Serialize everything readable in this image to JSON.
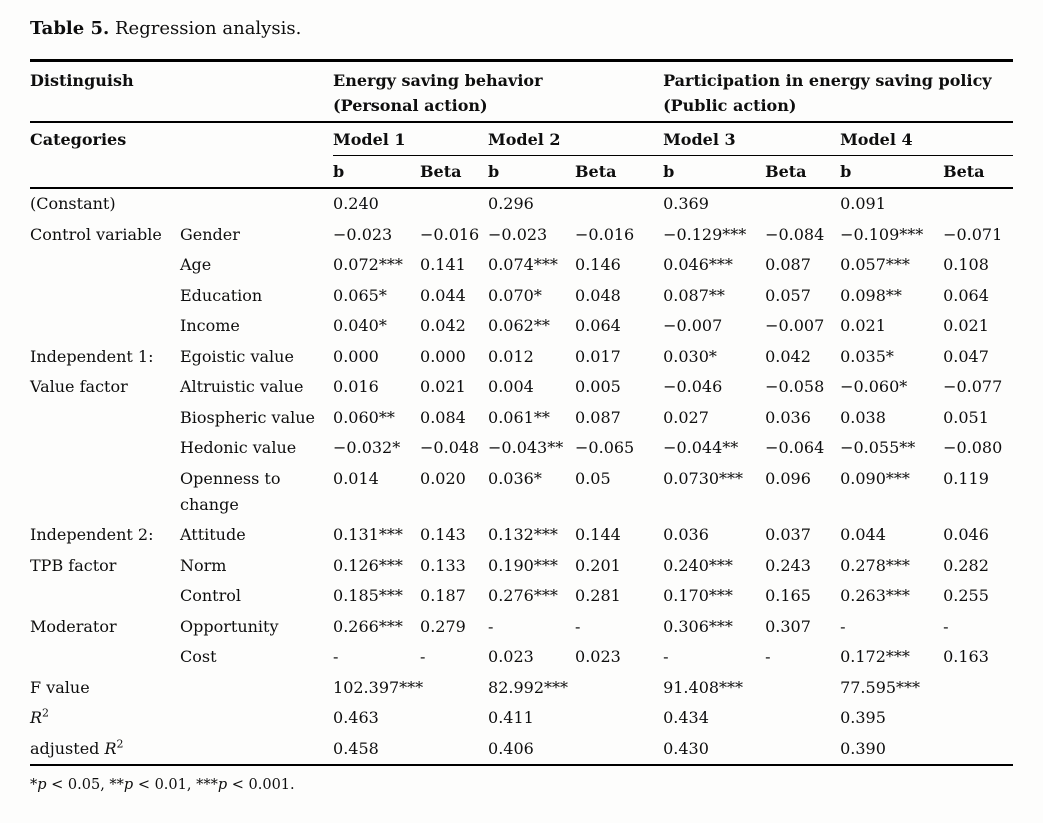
{
  "title": {
    "label": "Table 5.",
    "text": " Regression analysis."
  },
  "table": {
    "distinguish": "Distinguish",
    "categories": "Categories",
    "groups": [
      {
        "line1": "Energy saving behavior",
        "line2": "(Personal action)"
      },
      {
        "line1": "Participation in energy saving policy",
        "line2": "(Public action)"
      }
    ],
    "models": [
      "Model 1",
      "Model 2",
      "Model 3",
      "Model 4"
    ],
    "sub_headers": [
      "b",
      "Beta",
      "b",
      "Beta",
      "b",
      "Beta",
      "b",
      "Beta"
    ],
    "rows": [
      {
        "label": "(Constant)",
        "label_span": 2,
        "values": [
          "0.240",
          "",
          "0.296",
          "",
          "0.369",
          "",
          "0.091",
          ""
        ]
      },
      {
        "section": "Control variable",
        "section_rows": 4,
        "label": "Gender",
        "values": [
          "−0.023",
          "−0.016",
          "−0.023",
          "−0.016",
          "−0.129***",
          "−0.084",
          "−0.109***",
          "−0.071"
        ]
      },
      {
        "label": "Age",
        "values": [
          "0.072***",
          "0.141",
          "0.074***",
          "0.146",
          "0.046***",
          "0.087",
          "0.057***",
          "0.108"
        ]
      },
      {
        "label": "Education",
        "values": [
          "0.065*",
          "0.044",
          "0.070*",
          "0.048",
          "0.087**",
          "0.057",
          "0.098**",
          "0.064"
        ]
      },
      {
        "label": "Income",
        "values": [
          "0.040*",
          "0.042",
          "0.062**",
          "0.064",
          "−0.007",
          "−0.007",
          "0.021",
          "0.021"
        ]
      },
      {
        "section": "Independent 1: Value factor",
        "section_rows": 5,
        "label": "Egoistic value",
        "values": [
          "0.000",
          "0.000",
          "0.012",
          "0.017",
          "0.030*",
          "0.042",
          "0.035*",
          "0.047"
        ]
      },
      {
        "label": "Altruistic value",
        "values": [
          "0.016",
          "0.021",
          "0.004",
          "0.005",
          "−0.046",
          "−0.058",
          "−0.060*",
          "−0.077"
        ]
      },
      {
        "label": "Biospheric value",
        "values": [
          "0.060**",
          "0.084",
          "0.061**",
          "0.087",
          "0.027",
          "0.036",
          "0.038",
          "0.051"
        ]
      },
      {
        "label": "Hedonic value",
        "values": [
          "−0.032*",
          "−0.048",
          "−0.043**",
          "−0.065",
          "−0.044**",
          "−0.064",
          "−0.055**",
          "−0.080"
        ]
      },
      {
        "label": "Openness to change",
        "values": [
          "0.014",
          "0.020",
          "0.036*",
          "0.05",
          "0.0730***",
          "0.096",
          "0.090***",
          "0.119"
        ]
      },
      {
        "section": "Independent 2: TPB factor",
        "section_rows": 3,
        "label": "Attitude",
        "values": [
          "0.131***",
          "0.143",
          "0.132***",
          "0.144",
          "0.036",
          "0.037",
          "0.044",
          "0.046"
        ]
      },
      {
        "label": "Norm",
        "values": [
          "0.126***",
          "0.133",
          "0.190***",
          "0.201",
          "0.240***",
          "0.243",
          "0.278***",
          "0.282"
        ]
      },
      {
        "label": "Control",
        "values": [
          "0.185***",
          "0.187",
          "0.276***",
          "0.281",
          "0.170***",
          "0.165",
          "0.263***",
          "0.255"
        ]
      },
      {
        "section": "Moderator",
        "section_rows": 2,
        "label": "Opportunity",
        "values": [
          "0.266***",
          "0.279",
          "-",
          "-",
          "0.306***",
          "0.307",
          "-",
          "-"
        ]
      },
      {
        "label": "Cost",
        "values": [
          "-",
          "-",
          "0.023",
          "0.023",
          "-",
          "-",
          "0.172***",
          "0.163"
        ]
      },
      {
        "label": "F value",
        "label_span": 2,
        "values": [
          "102.397***",
          "",
          "82.992***",
          "",
          "91.408***",
          "",
          "77.595***",
          ""
        ]
      },
      {
        "label": "",
        "math": "R",
        "sup": "2",
        "label_span": 2,
        "values": [
          "0.463",
          "",
          "0.411",
          "",
          "0.434",
          "",
          "0.395",
          ""
        ]
      },
      {
        "label": "adjusted ",
        "math": "R",
        "sup": "2",
        "label_span": 2,
        "values": [
          "0.458",
          "",
          "0.406",
          "",
          "0.430",
          "",
          "0.390",
          ""
        ]
      }
    ]
  },
  "footnote": [
    {
      "text": "*"
    },
    {
      "text": "p",
      "italic": true
    },
    {
      "text": " < 0.05, **"
    },
    {
      "text": "p",
      "italic": true
    },
    {
      "text": " < 0.01, ***"
    },
    {
      "text": "p",
      "italic": true
    },
    {
      "text": " < 0.001."
    }
  ]
}
